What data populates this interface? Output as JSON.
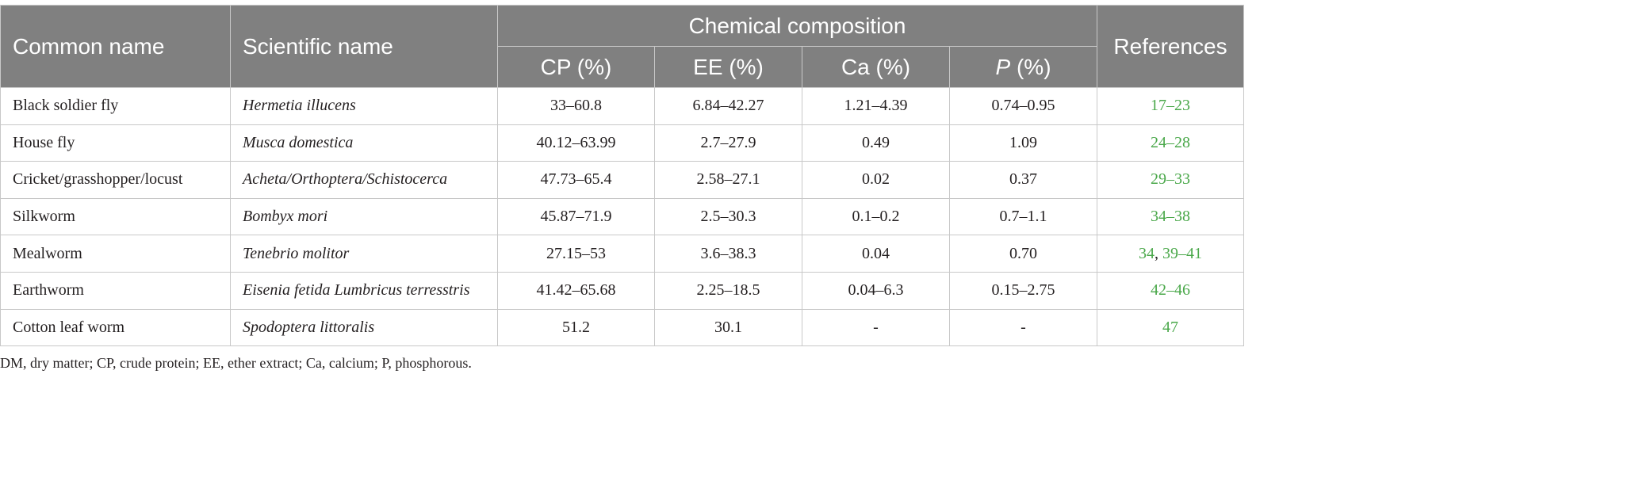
{
  "table": {
    "headers": {
      "common_name": "Common name",
      "scientific_name": "Scientific name",
      "group": "Chemical composition",
      "cp": "CP (%)",
      "ee": "EE (%)",
      "ca": "Ca (%)",
      "p_symbol": "P",
      "p_unit": " (%)",
      "references": "References"
    },
    "rows": [
      {
        "common": "Black soldier fly",
        "scientific": "Hermetia illucens",
        "cp": "33–60.8",
        "ee": "6.84–42.27",
        "ca": "1.21–4.39",
        "p": "0.74–0.95",
        "refs": [
          "17–23"
        ]
      },
      {
        "common": "House fly",
        "scientific": "Musca domestica",
        "cp": "40.12–63.99",
        "ee": "2.7–27.9",
        "ca": "0.49",
        "p": "1.09",
        "refs": [
          "24–28"
        ]
      },
      {
        "common": "Cricket/grasshopper/locust",
        "scientific": "Acheta/Orthoptera/Schistocerca",
        "cp": "47.73–65.4",
        "ee": "2.58–27.1",
        "ca": "0.02",
        "p": "0.37",
        "refs": [
          "29–33"
        ]
      },
      {
        "common": "Silkworm",
        "scientific": "Bombyx mori",
        "cp": "45.87–71.9",
        "ee": "2.5–30.3",
        "ca": "0.1–0.2",
        "p": "0.7–1.1",
        "refs": [
          "34–38"
        ]
      },
      {
        "common": "Mealworm",
        "scientific": "Tenebrio molitor",
        "cp": "27.15–53",
        "ee": "3.6–38.3",
        "ca": "0.04",
        "p": "0.70",
        "refs": [
          "34",
          "39–41"
        ]
      },
      {
        "common": "Earthworm",
        "scientific": "Eisenia fetida Lumbricus terresstris",
        "cp": "41.42–65.68",
        "ee": "2.25–18.5",
        "ca": "0.04–6.3",
        "p": "0.15–2.75",
        "refs": [
          "42–46"
        ]
      },
      {
        "common": "Cotton leaf worm",
        "scientific": "Spodoptera littoralis",
        "cp": "51.2",
        "ee": "30.1",
        "ca": "-",
        "p": "-",
        "refs": [
          "47"
        ]
      }
    ]
  },
  "footnote": "DM, dry matter; CP, crude protein; EE, ether extract; Ca, calcium; P, phosphorous.",
  "colors": {
    "header_bg": "#808080",
    "reference_link": "#4aa84a"
  }
}
